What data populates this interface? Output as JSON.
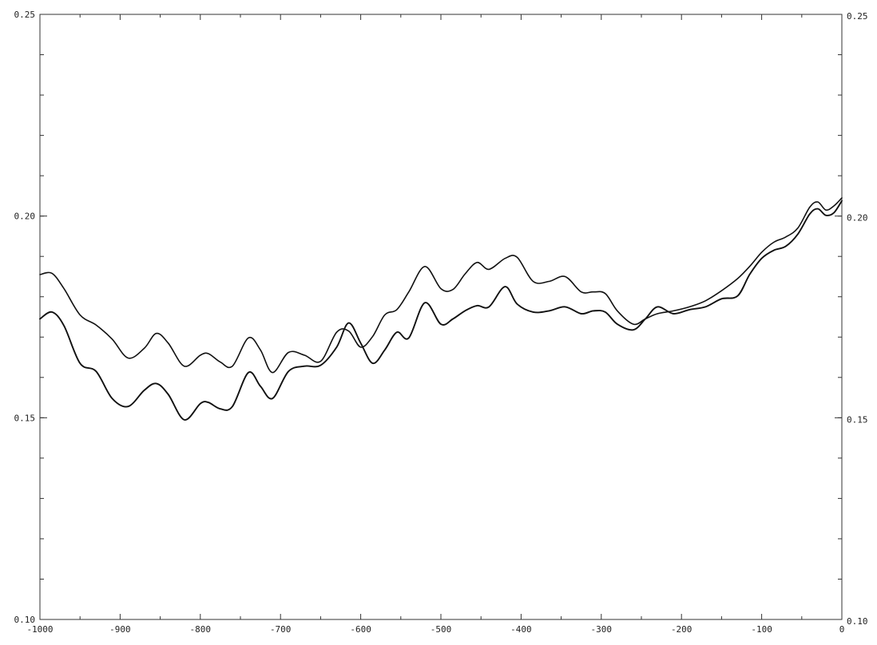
{
  "chart_data": {
    "type": "line",
    "title": "",
    "xlabel": "",
    "ylabel": "",
    "xlim": [
      -1000,
      0
    ],
    "ylim": [
      0.1,
      0.25
    ],
    "grid": false,
    "x_ticks": [
      -1000,
      -900,
      -800,
      -700,
      -600,
      -500,
      -400,
      -300,
      -200,
      -100,
      0
    ],
    "x_tick_labels": [
      "-1000",
      "-900",
      "-800",
      "-700",
      "-600",
      "-500",
      "-400",
      "-300",
      "-200",
      "-100",
      "0"
    ],
    "y_ticks": [
      0.1,
      0.15,
      0.2,
      0.25
    ],
    "y_tick_labels": [
      "0.10",
      "0.15",
      "0.20",
      "0.25"
    ],
    "right_y_tick_labels": [
      "0.10",
      "0.15",
      "0.20",
      "0.25"
    ],
    "series": [
      {
        "color": "#111111",
        "x": [
          -1000,
          -985,
          -970,
          -950,
          -930,
          -910,
          -890,
          -870,
          -855,
          -840,
          -820,
          -800,
          -790,
          -775,
          -760,
          -740,
          -725,
          -710,
          -690,
          -670,
          -650,
          -630,
          -615,
          -600,
          -585,
          -570,
          -555,
          -540,
          -520,
          -500,
          -485,
          -470,
          -455,
          -440,
          -420,
          -405,
          -385,
          -365,
          -345,
          -325,
          -310,
          -295,
          -280,
          -260,
          -245,
          -230,
          -210,
          -190,
          -170,
          -150,
          -130,
          -115,
          -100,
          -85,
          -70,
          -55,
          -40,
          -30,
          -20,
          -10,
          0
        ],
        "values": [
          0.1855,
          0.1858,
          0.182,
          0.1755,
          0.173,
          0.1695,
          0.1648,
          0.1672,
          0.1709,
          0.1685,
          0.1628,
          0.1655,
          0.1659,
          0.1638,
          0.1628,
          0.1698,
          0.1668,
          0.1612,
          0.1662,
          0.1655,
          0.164,
          0.1712,
          0.1715,
          0.1675,
          0.1702,
          0.1755,
          0.1768,
          0.1812,
          0.1875,
          0.182,
          0.1818,
          0.1856,
          0.1885,
          0.1868,
          0.1895,
          0.1898,
          0.1838,
          0.1838,
          0.185,
          0.1812,
          0.1812,
          0.1808,
          0.1765,
          0.1732,
          0.1745,
          0.1758,
          0.1765,
          0.1775,
          0.179,
          0.1815,
          0.1845,
          0.1875,
          0.191,
          0.1935,
          0.1948,
          0.197,
          0.2022,
          0.2035,
          0.2015,
          0.2025,
          0.2045
        ]
      },
      {
        "color": "#111111",
        "x": [
          -1000,
          -985,
          -970,
          -950,
          -930,
          -910,
          -890,
          -870,
          -855,
          -840,
          -820,
          -800,
          -790,
          -775,
          -760,
          -740,
          -725,
          -710,
          -690,
          -670,
          -650,
          -630,
          -615,
          -600,
          -585,
          -570,
          -555,
          -540,
          -520,
          -500,
          -485,
          -470,
          -455,
          -440,
          -420,
          -405,
          -385,
          -365,
          -345,
          -325,
          -310,
          -295,
          -280,
          -260,
          -245,
          -230,
          -210,
          -190,
          -170,
          -150,
          -130,
          -115,
          -100,
          -85,
          -70,
          -55,
          -40,
          -30,
          -20,
          -10,
          0
        ],
        "values": [
          0.1745,
          0.1762,
          0.1728,
          0.1635,
          0.1615,
          0.1548,
          0.1528,
          0.1568,
          0.1585,
          0.1558,
          0.1495,
          0.1535,
          0.1538,
          0.1522,
          0.1528,
          0.1612,
          0.1578,
          0.1548,
          0.1615,
          0.1628,
          0.163,
          0.1675,
          0.1735,
          0.1685,
          0.1635,
          0.1668,
          0.1712,
          0.1698,
          0.1785,
          0.1732,
          0.1745,
          0.1765,
          0.1778,
          0.1775,
          0.1825,
          0.1782,
          0.1762,
          0.1765,
          0.1775,
          0.1758,
          0.1765,
          0.1762,
          0.1732,
          0.1718,
          0.1745,
          0.1775,
          0.1758,
          0.1768,
          0.1775,
          0.1795,
          0.1802,
          0.1855,
          0.1895,
          0.1915,
          0.1925,
          0.1955,
          0.2005,
          0.2018,
          0.2002,
          0.2008,
          0.2038
        ]
      }
    ]
  }
}
